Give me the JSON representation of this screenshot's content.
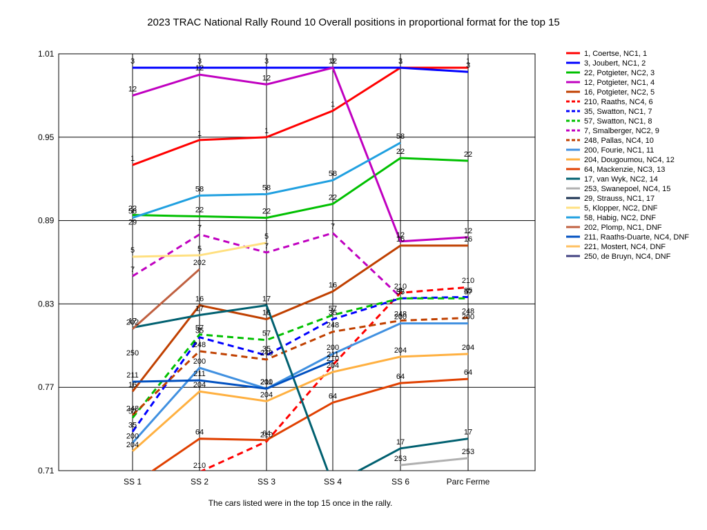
{
  "chart_data": {
    "type": "line",
    "title": "2023 TRAC National Rally Round 10  Overall positions in proportional format for the top 15",
    "footnote": "The cars listed were in the top 15 once in the rally.",
    "categories": [
      "SS 1",
      "SS 2",
      "SS 3",
      "SS 4",
      "SS 6",
      "Parc Ferme"
    ],
    "y_ticks": [
      "1.01",
      "0.95",
      "0.89",
      "0.83",
      "0.77",
      "0.71"
    ],
    "ylim": [
      0.71,
      1.01
    ],
    "series": [
      {
        "name": "1, Coertse, NC1, 1",
        "label": "1",
        "color": "#ff0000",
        "dashed": false,
        "values": [
          0.93,
          0.948,
          0.95,
          0.969,
          1.0,
          1.0
        ]
      },
      {
        "name": "3, Joubert, NC1, 2",
        "label": "3",
        "color": "#0000ff",
        "dashed": false,
        "values": [
          1.0,
          1.0,
          1.0,
          1.0,
          1.0,
          0.997
        ]
      },
      {
        "name": "22, Potgieter, NC2, 3",
        "label": "22",
        "color": "#00c000",
        "dashed": false,
        "values": [
          0.894,
          0.893,
          0.892,
          0.902,
          0.935,
          0.933
        ]
      },
      {
        "name": "12, Potgieter, NC1, 4",
        "label": "12",
        "color": "#c000c0",
        "dashed": false,
        "values": [
          0.98,
          0.995,
          0.988,
          1.0,
          0.875,
          0.878
        ]
      },
      {
        "name": "16, Potgieter, NC2, 5",
        "label": "16",
        "color": "#c04000",
        "dashed": false,
        "values": [
          0.767,
          0.829,
          0.819,
          0.839,
          0.872,
          0.872
        ]
      },
      {
        "name": "210, Raaths, NC4, 6",
        "label": "210",
        "color": "#ff0000",
        "dashed": true,
        "values": [
          null,
          0.709,
          0.731,
          0.786,
          0.838,
          0.842
        ]
      },
      {
        "name": "35, Swatton, NC1, 7",
        "label": "35",
        "color": "#0000ff",
        "dashed": true,
        "values": [
          0.738,
          0.806,
          0.793,
          0.819,
          0.834,
          0.835
        ]
      },
      {
        "name": "57, Swatton, NC1, 8",
        "label": "57",
        "color": "#00c000",
        "dashed": true,
        "values": [
          0.748,
          0.808,
          0.804,
          0.822,
          0.834,
          0.834
        ]
      },
      {
        "name": "7, Smalberger, NC2, 9",
        "label": "7",
        "color": "#c000c0",
        "dashed": true,
        "values": [
          0.85,
          0.88,
          0.867,
          0.881,
          0.835,
          null
        ]
      },
      {
        "name": "248, Pallas, NC4, 10",
        "label": "248",
        "color": "#c04000",
        "dashed": true,
        "values": [
          0.75,
          0.796,
          0.79,
          0.81,
          0.818,
          0.82
        ]
      },
      {
        "name": "200, Fourie, NC1, 11",
        "label": "200",
        "color": "#4090e0",
        "dashed": false,
        "values": [
          0.73,
          0.784,
          0.769,
          0.794,
          0.816,
          0.816
        ]
      },
      {
        "name": "204, Dougoumou, NC4, 12",
        "label": "204",
        "color": "#ffb040",
        "dashed": false,
        "values": [
          0.724,
          0.767,
          0.76,
          0.781,
          0.792,
          0.794
        ]
      },
      {
        "name": "64, Mackenzie, NC3, 13",
        "label": "64",
        "color": "#e04000",
        "dashed": false,
        "values": [
          0.7,
          0.733,
          0.732,
          0.759,
          0.773,
          0.776
        ]
      },
      {
        "name": "17, van Wyk, NC2, 14",
        "label": "17",
        "color": "#006070",
        "dashed": false,
        "values": [
          0.813,
          0.822,
          0.829,
          0.7,
          0.726,
          0.733
        ]
      },
      {
        "name": "253, Swanepoel, NC4, 15",
        "label": "253",
        "color": "#b0b0b0",
        "dashed": false,
        "values": [
          null,
          null,
          null,
          null,
          0.714,
          0.719
        ]
      },
      {
        "name": "29, Strauss, NC1, 17",
        "label": "29",
        "color": "#1a3050",
        "dashed": false,
        "values": [
          0.884,
          null,
          null,
          null,
          null,
          null
        ]
      },
      {
        "name": "5, Klopper, NC2,  DNF",
        "label": "5",
        "color": "#ffe080",
        "dashed": false,
        "values": [
          0.864,
          0.865,
          0.874,
          null,
          null,
          null
        ]
      },
      {
        "name": "58, Habig, NC2,  DNF",
        "label": "58",
        "color": "#20a0e0",
        "dashed": false,
        "values": [
          0.892,
          0.908,
          0.909,
          0.919,
          0.946,
          null
        ]
      },
      {
        "name": "202, Plomp, NC1,  DNF",
        "label": "202",
        "color": "#c06040",
        "dashed": false,
        "values": [
          0.812,
          0.855,
          null,
          null,
          null,
          null
        ]
      },
      {
        "name": "211, Raaths-Duarte, NC4, DNF",
        "label": "211",
        "color": "#0050c0",
        "dashed": false,
        "values": [
          0.774,
          0.775,
          0.769,
          0.789,
          null,
          null
        ]
      },
      {
        "name": "221, Mostert, NC4,  DNF",
        "label": "221",
        "color": "#ffc060",
        "dashed": false,
        "values": [
          null,
          null,
          null,
          null,
          null,
          null
        ]
      },
      {
        "name": "250, de Bruyn, NC4,  DNF",
        "label": "250",
        "color": "#404080",
        "dashed": false,
        "values": [
          0.79,
          null,
          null,
          null,
          null,
          null
        ]
      }
    ],
    "legend_position": "right",
    "grid": "horizontal"
  }
}
